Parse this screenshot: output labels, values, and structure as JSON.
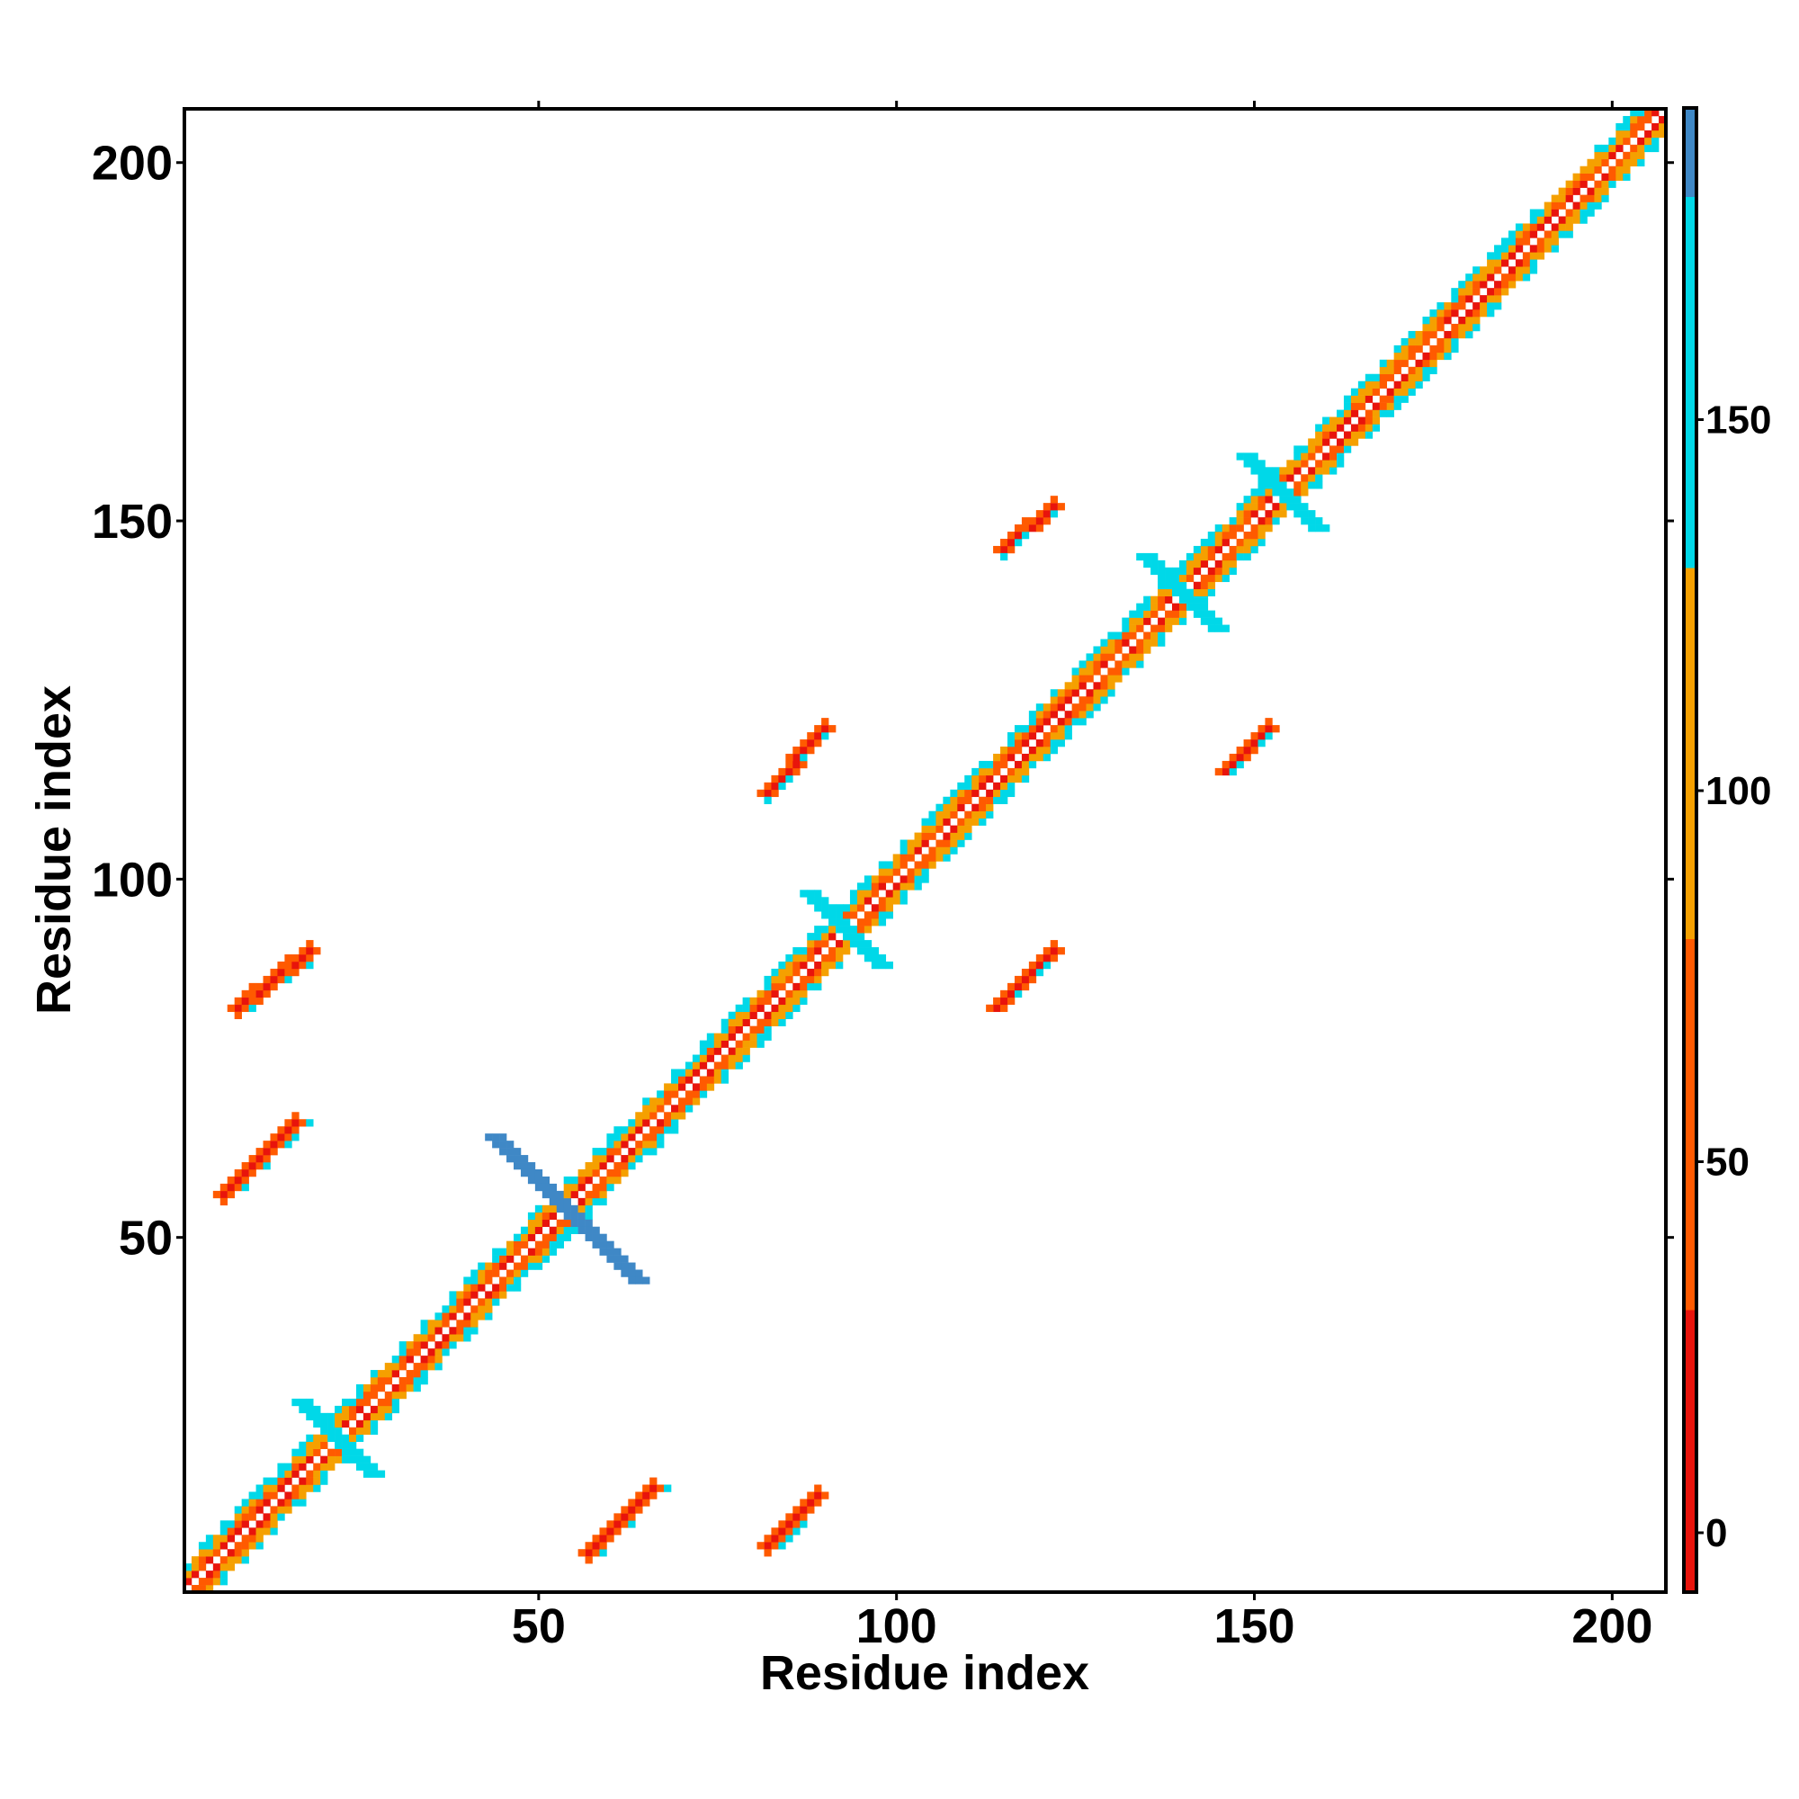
{
  "chart_data": {
    "type": "heatmap",
    "title": "",
    "xlabel": "Residue index",
    "ylabel": "Residue index",
    "xlim": [
      0.5,
      207.5
    ],
    "ylim": [
      0.5,
      207.5
    ],
    "x_ticks": [
      50,
      100,
      150,
      200
    ],
    "y_ticks": [
      50,
      100,
      150,
      200
    ],
    "x_tick_labels": [
      "50",
      "100",
      "150",
      "200"
    ],
    "y_tick_labels": [
      "50",
      "100",
      "150",
      "200"
    ],
    "grid": false,
    "description_of_cells": "contact-map style matrix; blank cells are white (no value)",
    "colorbar": {
      "range": [
        -8,
        192
      ],
      "ticks": [
        0,
        50,
        100,
        150
      ],
      "tick_labels": [
        "0",
        "50",
        "100",
        "150"
      ],
      "bins": [
        {
          "from": -8,
          "to": 30,
          "color": "#e8140c"
        },
        {
          "from": 30,
          "to": 80,
          "color": "#ff5a00"
        },
        {
          "from": 80,
          "to": 130,
          "color": "#f5a000"
        },
        {
          "from": 130,
          "to": 180,
          "color": "#00d8e8"
        },
        {
          "from": 180,
          "to": 192,
          "color": "#3f88c6"
        }
      ]
    },
    "features": [
      {
        "kind": "diagonal",
        "from": 1,
        "to": 207
      },
      {
        "kind": "cross",
        "center": 54,
        "half_length": 10,
        "value": 185
      },
      {
        "kind": "antiparallel_band",
        "x": [
          57,
          66
        ],
        "y": [
          6,
          15
        ]
      },
      {
        "kind": "antiparallel_band",
        "x": [
          82,
          89
        ],
        "y": [
          7,
          14
        ]
      },
      {
        "kind": "antiparallel_band",
        "x": [
          6,
          16
        ],
        "y": [
          56,
          66
        ]
      },
      {
        "kind": "antiparallel_band",
        "x": [
          8,
          18
        ],
        "y": [
          82,
          90
        ]
      },
      {
        "kind": "parallel_band",
        "x": [
          114,
          122
        ],
        "y": [
          82,
          90
        ]
      },
      {
        "kind": "parallel_band",
        "x": [
          82,
          90
        ],
        "y": [
          112,
          121
        ]
      },
      {
        "kind": "parallel_band",
        "x": [
          146,
          152
        ],
        "y": [
          115,
          121
        ]
      },
      {
        "kind": "parallel_band",
        "x": [
          115,
          122
        ],
        "y": [
          146,
          152
        ]
      },
      {
        "kind": "cross",
        "center": 154,
        "half_length": 5,
        "value": 160
      },
      {
        "kind": "cross",
        "center": 140,
        "half_length": 5,
        "value": 160
      },
      {
        "kind": "cross",
        "center": 93,
        "half_length": 5,
        "value": 160
      },
      {
        "kind": "cross",
        "center": 22,
        "half_length": 5,
        "value": 160
      }
    ]
  }
}
